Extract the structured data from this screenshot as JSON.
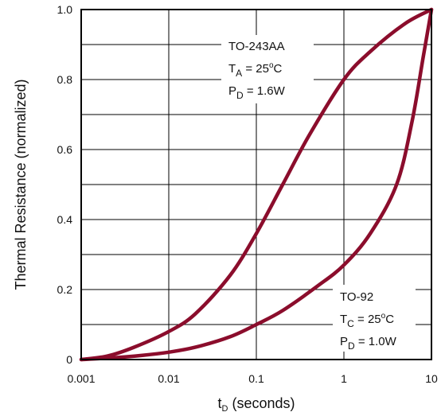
{
  "chart_data": {
    "type": "line",
    "x_scale": "log",
    "xlim": [
      0.001,
      10
    ],
    "ylim": [
      0,
      1.0
    ],
    "grid": true,
    "xlabel": {
      "main": "t",
      "sub": "D",
      "rest": " (seconds)"
    },
    "ylabel": "Thermal Resistance (normalized)",
    "x_tick_labels": [
      "0.001",
      "0.01",
      "0.1",
      "1",
      "10"
    ],
    "x_ticks": [
      0.001,
      0.01,
      0.1,
      1,
      10
    ],
    "y_tick_labels": [
      "0",
      "0.2",
      "0.4",
      "0.6",
      "0.8",
      "1.0"
    ],
    "y_ticks": [
      0,
      0.2,
      0.4,
      0.6,
      0.8,
      1.0
    ],
    "line_color": "#8b0d2c",
    "series": [
      {
        "x": [
          0.001,
          0.002,
          0.004,
          0.01,
          0.02,
          0.05,
          0.1,
          0.2,
          0.4,
          1,
          2,
          5,
          10
        ],
        "y": [
          0.0,
          0.01,
          0.035,
          0.08,
          0.13,
          0.24,
          0.36,
          0.5,
          0.64,
          0.8,
          0.88,
          0.96,
          1.0
        ]
      },
      {
        "x": [
          0.001,
          0.002,
          0.005,
          0.01,
          0.02,
          0.05,
          0.1,
          0.2,
          0.5,
          1,
          2,
          4,
          6,
          8,
          10
        ],
        "y": [
          0.0,
          0.004,
          0.012,
          0.021,
          0.035,
          0.065,
          0.1,
          0.14,
          0.21,
          0.27,
          0.36,
          0.5,
          0.68,
          0.86,
          1.0
        ]
      }
    ],
    "annotations": [
      {
        "id": "to243",
        "lines": [
          {
            "parts": [
              {
                "text": "TO-243AA"
              }
            ]
          },
          {
            "parts": [
              {
                "text": "T"
              },
              {
                "text": "A",
                "sub": true
              },
              {
                "text": " = 25"
              },
              {
                "text": "o",
                "sup": true
              },
              {
                "text": "C"
              }
            ]
          },
          {
            "parts": [
              {
                "text": "P"
              },
              {
                "text": "D",
                "sub": true
              },
              {
                "text": " = 1.6W"
              }
            ]
          }
        ]
      },
      {
        "id": "to92",
        "lines": [
          {
            "parts": [
              {
                "text": "TO-92"
              }
            ]
          },
          {
            "parts": [
              {
                "text": "T"
              },
              {
                "text": "C",
                "sub": true
              },
              {
                "text": " = 25"
              },
              {
                "text": "o",
                "sup": true
              },
              {
                "text": "C"
              }
            ]
          },
          {
            "parts": [
              {
                "text": "P"
              },
              {
                "text": "D",
                "sub": true
              },
              {
                "text": " = 1.0W"
              }
            ]
          }
        ]
      }
    ]
  }
}
